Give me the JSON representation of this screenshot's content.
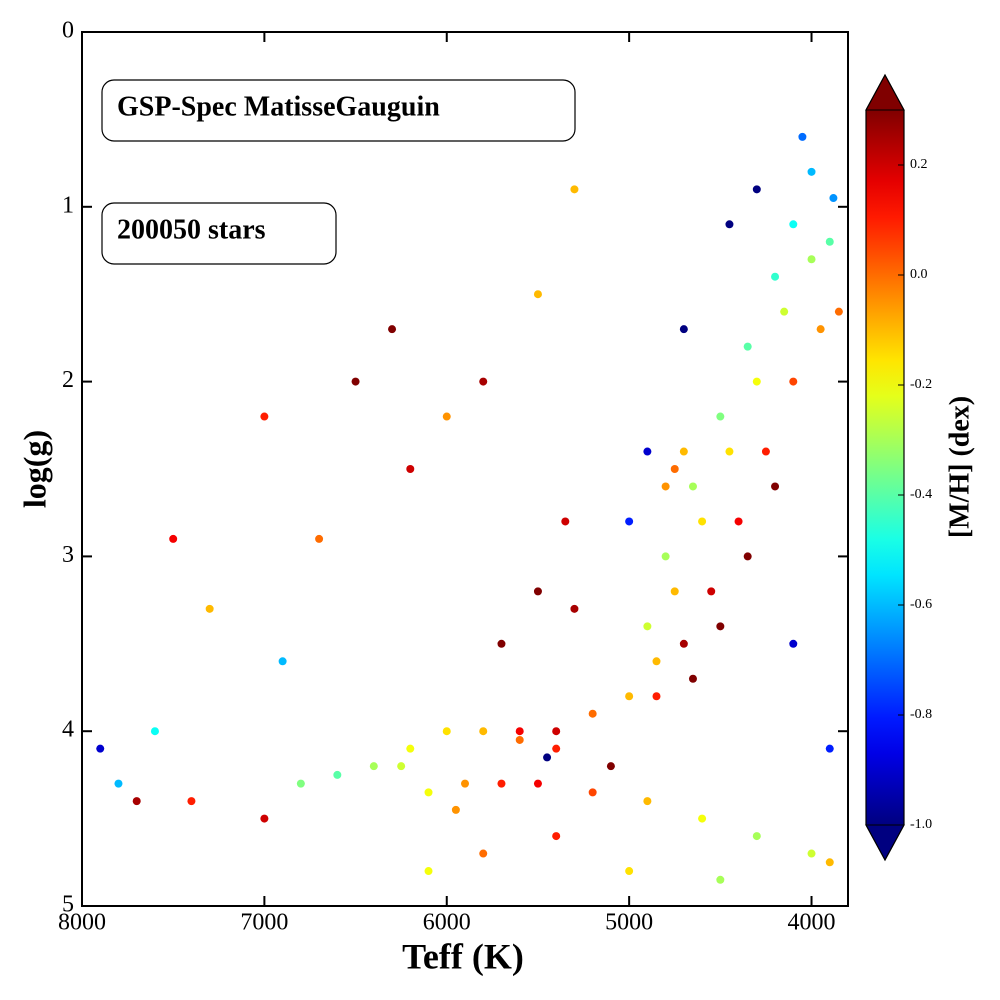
{
  "chart_data": {
    "type": "scatter",
    "annotations": [
      "GSP-Spec MatisseGauguin",
      "200050 stars"
    ],
    "xlabel": "Teff (K)",
    "ylabel": "log(g)",
    "colorbar_label": "[M/H] (dex)",
    "xlim": [
      8000,
      3800
    ],
    "xticks": [
      8000,
      7000,
      6000,
      5000,
      4000
    ],
    "ylim": [
      0,
      5
    ],
    "yticks": [
      0,
      1,
      2,
      3,
      4,
      5
    ],
    "colormap": "jet",
    "clim": [
      -1.0,
      0.3
    ],
    "cticks": [
      {
        "value": -1.0,
        "label": "-1.0"
      },
      -0.8,
      -0.6,
      -0.4,
      -0.2,
      {
        "value": 0.0,
        "label": "0.0"
      },
      0.2
    ],
    "annotation_colors": [
      "#e8141c",
      "#000000"
    ],
    "x": [
      4000,
      4100,
      4200,
      4350,
      4500,
      4650,
      4800,
      4900,
      3900,
      4000,
      4150,
      4300,
      4450,
      4600,
      4750,
      4850,
      3850,
      3950,
      4100,
      4250,
      4400,
      4550,
      4700,
      4850,
      4200,
      4350,
      4500,
      4650,
      4300,
      4450,
      4700,
      4900,
      5000,
      4700,
      4750,
      4800,
      5000,
      5200,
      5400,
      5300,
      5500,
      5350,
      6400,
      6200,
      6000,
      5800,
      5600,
      5400,
      6600,
      6800,
      5900,
      6100,
      5700,
      5500,
      5200,
      4900,
      4600,
      4300,
      4000,
      7800,
      7600,
      7400,
      7000,
      7900,
      7700,
      7000,
      6500,
      6200,
      6000,
      7500,
      6700,
      5800,
      5500,
      5300,
      6300,
      6100,
      5800,
      5000,
      4500,
      3900,
      5400,
      6900,
      7300,
      5700,
      4100,
      3900,
      5100,
      5450,
      5600,
      6250,
      5950,
      4050,
      3880
    ],
    "values": [
      0.8,
      1.1,
      1.4,
      1.8,
      2.2,
      2.6,
      3.0,
      3.4,
      1.2,
      1.3,
      1.6,
      2.0,
      2.4,
      2.8,
      3.2,
      3.6,
      1.6,
      1.7,
      2.0,
      2.4,
      2.8,
      3.2,
      3.5,
      3.8,
      2.6,
      3.0,
      3.4,
      3.7,
      0.9,
      1.1,
      1.7,
      2.4,
      2.8,
      2.4,
      2.5,
      2.6,
      3.8,
      3.9,
      4.0,
      3.3,
      3.2,
      2.8,
      4.2,
      4.1,
      4.0,
      4.0,
      4.05,
      4.1,
      4.25,
      4.3,
      4.3,
      4.35,
      4.3,
      4.3,
      4.35,
      4.4,
      4.5,
      4.6,
      4.7,
      4.3,
      4.0,
      4.4,
      4.5,
      4.1,
      4.4,
      2.2,
      2.0,
      2.5,
      2.2,
      2.9,
      2.9,
      2.0,
      1.5,
      0.9,
      1.7,
      4.8,
      4.7,
      4.8,
      4.85,
      4.75,
      4.6,
      3.6,
      3.3,
      3.5,
      3.5,
      4.1,
      4.2,
      4.15,
      4.0,
      4.2,
      4.45,
      0.6,
      0.95
    ],
    "c": [
      -0.6,
      -0.5,
      -0.45,
      -0.4,
      -0.35,
      -0.3,
      -0.3,
      -0.25,
      -0.4,
      -0.3,
      -0.25,
      -0.2,
      -0.15,
      -0.15,
      -0.1,
      -0.1,
      0.0,
      -0.05,
      0.05,
      0.1,
      0.15,
      0.2,
      0.25,
      0.1,
      0.3,
      0.3,
      0.3,
      0.3,
      -1.0,
      -1.0,
      -1.0,
      -0.9,
      -0.8,
      -0.1,
      0.0,
      -0.05,
      -0.1,
      0.0,
      0.2,
      0.25,
      0.3,
      0.2,
      -0.3,
      -0.2,
      -0.15,
      -0.1,
      0.0,
      0.1,
      -0.4,
      -0.35,
      -0.05,
      -0.2,
      0.1,
      0.15,
      0.05,
      -0.1,
      -0.2,
      -0.3,
      -0.25,
      -0.6,
      -0.5,
      0.1,
      0.2,
      -0.9,
      0.25,
      0.1,
      0.3,
      0.2,
      -0.05,
      0.15,
      0.0,
      0.25,
      -0.1,
      -0.1,
      0.3,
      -0.2,
      0.0,
      -0.15,
      -0.3,
      -0.1,
      0.1,
      -0.6,
      -0.1,
      0.3,
      -0.9,
      -0.8,
      0.3,
      -1.0,
      0.15,
      -0.25,
      -0.05,
      -0.7,
      -0.65
    ]
  }
}
